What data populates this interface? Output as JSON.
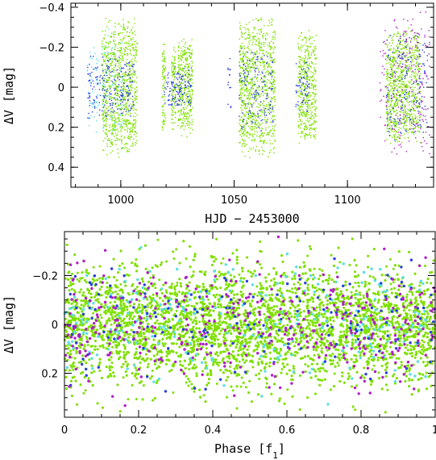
{
  "colors": {
    "green": "#7fe000",
    "cyan": "#5ce0e6",
    "blue": "#2a3fe0",
    "magenta": "#b020c8"
  },
  "chart_data": [
    {
      "type": "scatter",
      "name": "light-curve",
      "xlabel": "HJD − 2453000",
      "ylabel": "ΔV [mag]",
      "xlim": [
        978,
        1138
      ],
      "ylim": [
        0.5,
        -0.42
      ],
      "y_inverted": true,
      "xticks": [
        1000,
        1050,
        1100
      ],
      "xtick_labels": [
        "1000",
        "1050",
        "1100"
      ],
      "yticks": [
        -0.4,
        -0.2,
        0,
        0.2,
        0.4
      ],
      "ytick_labels": [
        "−0.4",
        "−0.2",
        "0",
        "0.2",
        "0.4"
      ],
      "series": [
        {
          "color": "cyan",
          "segments": [
            [
              985,
              990,
              0.28
            ],
            [
              991,
              994,
              0.25
            ],
            [
              994,
              1001,
              0.33
            ]
          ]
        },
        {
          "color": "green",
          "segments": [
            [
              991.5,
              1007,
              0.36
            ],
            [
              1018,
              1019.5,
              0.25
            ],
            [
              1022,
              1024,
              0.22
            ],
            [
              1025,
              1031.5,
              0.26
            ],
            [
              1052,
              1068,
              0.37
            ],
            [
              1078,
              1086,
              0.29
            ],
            [
              1117,
              1132,
              0.3
            ]
          ]
        },
        {
          "color": "blue",
          "segments": [
            [
              985,
              1006,
              0.18
            ],
            [
              1019,
              1031,
              0.12
            ],
            [
              1047,
              1048.5,
              0.15
            ],
            [
              1052,
              1067,
              0.22
            ],
            [
              1077,
              1083,
              0.14
            ],
            [
              1117,
              1135,
              0.28
            ]
          ]
        },
        {
          "color": "magenta",
          "segments": [
            [
              1114,
              1117,
              0.3
            ],
            [
              1119,
              1136,
              0.4
            ]
          ]
        }
      ]
    },
    {
      "type": "scatter",
      "name": "phased-light-curve",
      "xlabel": "Phase [f1]",
      "ylabel": "ΔV [mag]",
      "xlim": [
        0,
        1
      ],
      "ylim": [
        0.38,
        -0.38
      ],
      "y_inverted": true,
      "xticks": [
        0,
        0.2,
        0.4,
        0.6,
        0.8,
        1
      ],
      "xtick_labels": [
        "0",
        "0.2",
        "0.4",
        "0.6",
        "0.8",
        "1"
      ],
      "yticks": [
        -0.2,
        0,
        0.2
      ],
      "ytick_labels": [
        "−0.2",
        "0",
        "0.2"
      ],
      "series": [
        {
          "color": "green",
          "spread": 0.36
        },
        {
          "color": "cyan",
          "spread": 0.34
        },
        {
          "color": "blue",
          "spread": 0.3
        },
        {
          "color": "magenta",
          "spread": 0.36
        }
      ]
    }
  ]
}
